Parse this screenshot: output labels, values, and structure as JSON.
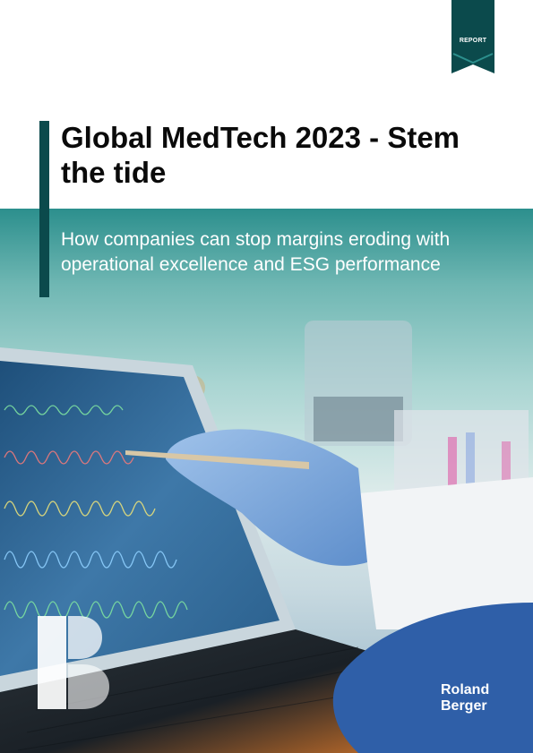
{
  "report_tab": {
    "label": "REPORT"
  },
  "title": "Global MedTech 2023 - Stem the tide",
  "subtitle": "How companies can stop margins eroding with operational excellence and ESG performance",
  "brand": {
    "line1": "Roland",
    "line2": "Berger",
    "logo_icon": "b-monogram-icon"
  },
  "colors": {
    "accent": "#0b4a4c",
    "teal": "#2c8f8d",
    "text": "#0a0a0a"
  }
}
